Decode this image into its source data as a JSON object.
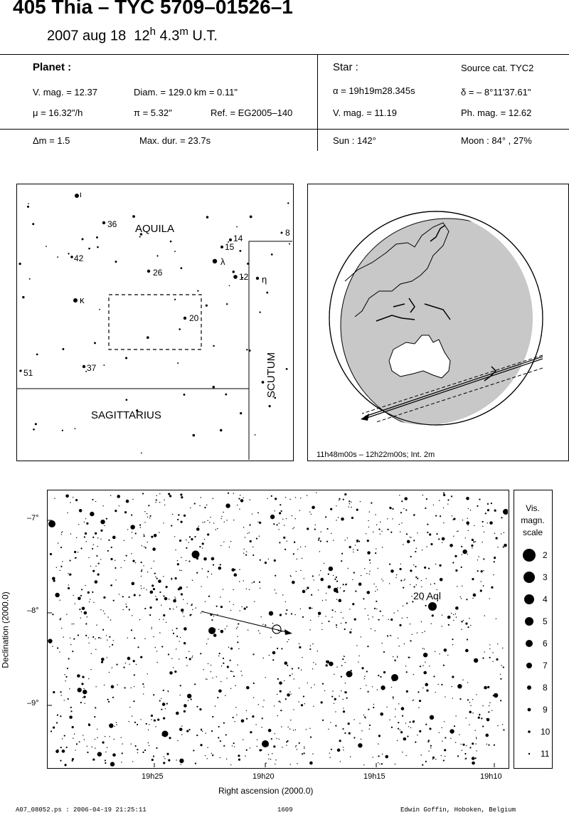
{
  "header": {
    "title": "405 Thia  –  TYC 5709–01526–1",
    "date": "2007 aug 18",
    "time_h": "12",
    "time_h_sup": "h",
    "time_m": "4.3",
    "time_m_sup": "m",
    "time_tail": "U.T."
  },
  "planet": {
    "heading": "Planet :",
    "vmag": "V. mag. = 12.37",
    "diam": "Diam. = 129.0 km = 0.11\"",
    "mu": "μ =  16.32\"/h",
    "pi": "π =  5.32\"",
    "ref": "Ref. = EG2005–140"
  },
  "star": {
    "heading": "Star :",
    "source": "Source cat.  TYC2",
    "alpha": "α = 19h19m28.345s",
    "delta": "δ = – 8°11'37.61\"",
    "vmag": "V. mag. = 11.19",
    "phmag": "Ph. mag. = 12.62"
  },
  "circumstances": {
    "dm": "Δm = 1.5",
    "maxdur": "Max. dur. = 23.7s",
    "sun": "Sun : 142°",
    "moon": "Moon :  84° , 27%"
  },
  "finder_chart": {
    "constellation_aquila": "AQUILA",
    "constellation_sagittarius": "SAGITTARIUS",
    "constellation_scutum": "SCUTUM",
    "star_labels": [
      "ι",
      "36",
      "14",
      "15",
      "8",
      "42",
      "λ",
      "26",
      "12",
      "η",
      "κ",
      "20",
      "37",
      "51"
    ]
  },
  "globe": {
    "caption": "11h48m00s – 12h22m00s; Int.  2m"
  },
  "star_chart": {
    "dec_ticks": [
      "–7°",
      "–8°",
      "–9°"
    ],
    "ra_ticks": [
      "19h25",
      "19h20",
      "19h15",
      "19h10"
    ],
    "ylabel": "Declination (2000.0)",
    "xlabel": "Right ascension (2000.0)",
    "label_20aql": "20 Aql"
  },
  "mag_scale": {
    "title_line1": "Vis.",
    "title_line2": "magn.",
    "title_line3": "scale",
    "values": [
      "2",
      "3",
      "4",
      "5",
      "6",
      "7",
      "8",
      "9",
      "10",
      "11"
    ]
  },
  "footer": {
    "file": "A07_08052.ps : 2006-04-19 21:25:11",
    "number": "1609",
    "author": "Edwin Goffin, Hoboken, Belgium"
  }
}
